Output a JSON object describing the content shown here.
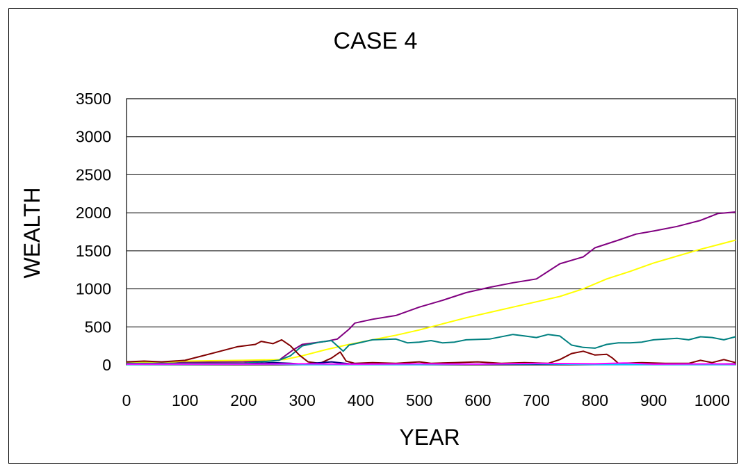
{
  "chart_data": {
    "type": "line",
    "title": "CASE 4",
    "xlabel": "YEAR",
    "ylabel": "WEALTH",
    "xlim": [
      0,
      1040
    ],
    "ylim": [
      0,
      3500
    ],
    "x_ticks": [
      "0",
      "100",
      "200",
      "300",
      "400",
      "500",
      "600",
      "700",
      "800",
      "900",
      "1000"
    ],
    "y_ticks": [
      "0",
      "500",
      "1000",
      "1500",
      "2000",
      "2500",
      "3000",
      "3500"
    ],
    "grid": "horizontal",
    "legend": "none",
    "series": [
      {
        "color": "#800080",
        "points": [
          [
            0,
            30
          ],
          [
            100,
            35
          ],
          [
            200,
            40
          ],
          [
            260,
            60
          ],
          [
            285,
            200
          ],
          [
            300,
            270
          ],
          [
            340,
            310
          ],
          [
            360,
            340
          ],
          [
            380,
            470
          ],
          [
            390,
            550
          ],
          [
            420,
            600
          ],
          [
            460,
            650
          ],
          [
            500,
            760
          ],
          [
            540,
            850
          ],
          [
            580,
            950
          ],
          [
            620,
            1020
          ],
          [
            660,
            1080
          ],
          [
            700,
            1130
          ],
          [
            720,
            1230
          ],
          [
            740,
            1330
          ],
          [
            780,
            1420
          ],
          [
            800,
            1540
          ],
          [
            840,
            1640
          ],
          [
            870,
            1720
          ],
          [
            900,
            1760
          ],
          [
            940,
            1820
          ],
          [
            980,
            1900
          ],
          [
            1010,
            1990
          ],
          [
            1040,
            2010
          ]
        ]
      },
      {
        "color": "#FFFF00",
        "points": [
          [
            0,
            30
          ],
          [
            80,
            40
          ],
          [
            100,
            50
          ],
          [
            200,
            60
          ],
          [
            270,
            70
          ],
          [
            300,
            120
          ],
          [
            340,
            200
          ],
          [
            380,
            270
          ],
          [
            420,
            330
          ],
          [
            460,
            390
          ],
          [
            500,
            460
          ],
          [
            540,
            540
          ],
          [
            580,
            620
          ],
          [
            620,
            690
          ],
          [
            660,
            760
          ],
          [
            700,
            830
          ],
          [
            740,
            900
          ],
          [
            780,
            1000
          ],
          [
            820,
            1130
          ],
          [
            860,
            1230
          ],
          [
            900,
            1340
          ],
          [
            940,
            1430
          ],
          [
            980,
            1520
          ],
          [
            1010,
            1580
          ],
          [
            1040,
            1640
          ]
        ]
      },
      {
        "color": "#008080",
        "points": [
          [
            0,
            20
          ],
          [
            200,
            20
          ],
          [
            260,
            60
          ],
          [
            280,
            120
          ],
          [
            300,
            250
          ],
          [
            330,
            300
          ],
          [
            350,
            320
          ],
          [
            370,
            180
          ],
          [
            380,
            260
          ],
          [
            420,
            330
          ],
          [
            460,
            340
          ],
          [
            480,
            290
          ],
          [
            500,
            300
          ],
          [
            520,
            320
          ],
          [
            540,
            290
          ],
          [
            560,
            300
          ],
          [
            580,
            330
          ],
          [
            620,
            340
          ],
          [
            660,
            400
          ],
          [
            680,
            380
          ],
          [
            700,
            360
          ],
          [
            720,
            400
          ],
          [
            740,
            380
          ],
          [
            760,
            260
          ],
          [
            780,
            230
          ],
          [
            800,
            220
          ],
          [
            820,
            270
          ],
          [
            840,
            290
          ],
          [
            860,
            290
          ],
          [
            880,
            300
          ],
          [
            900,
            330
          ],
          [
            940,
            350
          ],
          [
            960,
            330
          ],
          [
            980,
            370
          ],
          [
            1000,
            360
          ],
          [
            1020,
            330
          ],
          [
            1040,
            370
          ]
        ]
      },
      {
        "color": "#800000",
        "points": [
          [
            0,
            40
          ],
          [
            30,
            50
          ],
          [
            60,
            40
          ],
          [
            100,
            60
          ],
          [
            130,
            120
          ],
          [
            160,
            180
          ],
          [
            190,
            240
          ],
          [
            220,
            270
          ],
          [
            230,
            310
          ],
          [
            250,
            280
          ],
          [
            265,
            330
          ],
          [
            280,
            250
          ],
          [
            295,
            130
          ],
          [
            310,
            40
          ],
          [
            330,
            20
          ],
          [
            350,
            90
          ],
          [
            365,
            170
          ],
          [
            375,
            50
          ],
          [
            390,
            20
          ],
          [
            420,
            30
          ],
          [
            460,
            20
          ],
          [
            500,
            40
          ],
          [
            520,
            20
          ],
          [
            560,
            30
          ],
          [
            600,
            40
          ],
          [
            640,
            20
          ],
          [
            680,
            30
          ],
          [
            720,
            20
          ],
          [
            740,
            70
          ],
          [
            760,
            150
          ],
          [
            780,
            180
          ],
          [
            800,
            130
          ],
          [
            820,
            140
          ],
          [
            830,
            90
          ],
          [
            840,
            20
          ],
          [
            880,
            30
          ],
          [
            920,
            20
          ],
          [
            960,
            20
          ],
          [
            980,
            60
          ],
          [
            1000,
            30
          ],
          [
            1020,
            70
          ],
          [
            1040,
            30
          ]
        ]
      },
      {
        "color": "#000080",
        "points": [
          [
            0,
            10
          ],
          [
            200,
            10
          ],
          [
            250,
            30
          ],
          [
            280,
            20
          ],
          [
            300,
            10
          ],
          [
            350,
            40
          ],
          [
            380,
            15
          ],
          [
            420,
            10
          ],
          [
            500,
            10
          ],
          [
            600,
            10
          ],
          [
            700,
            10
          ],
          [
            800,
            10
          ],
          [
            900,
            10
          ],
          [
            1000,
            10
          ],
          [
            1040,
            15
          ]
        ]
      },
      {
        "color": "#00CCFF",
        "points": [
          [
            0,
            5
          ],
          [
            250,
            10
          ],
          [
            300,
            5
          ],
          [
            400,
            5
          ],
          [
            500,
            5
          ],
          [
            600,
            10
          ],
          [
            700,
            15
          ],
          [
            800,
            5
          ],
          [
            900,
            5
          ],
          [
            1000,
            5
          ],
          [
            1040,
            5
          ]
        ]
      },
      {
        "color": "#FF00FF",
        "points": [
          [
            0,
            10
          ],
          [
            200,
            10
          ],
          [
            300,
            15
          ],
          [
            400,
            10
          ],
          [
            500,
            15
          ],
          [
            600,
            10
          ],
          [
            700,
            20
          ],
          [
            800,
            15
          ],
          [
            850,
            25
          ],
          [
            900,
            10
          ],
          [
            1000,
            15
          ],
          [
            1040,
            10
          ]
        ]
      }
    ]
  }
}
